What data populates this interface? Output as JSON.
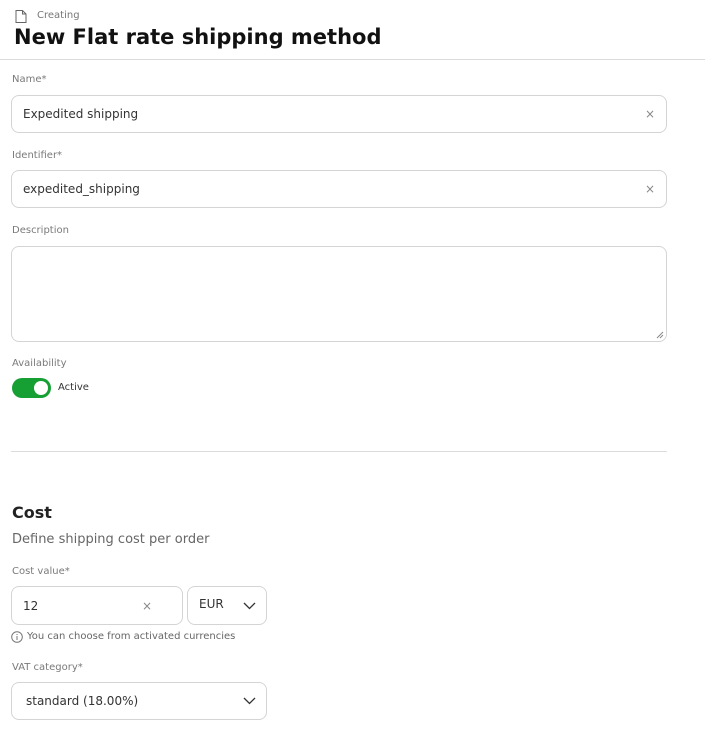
{
  "header": {
    "breadcrumb": "Creating",
    "title": "New Flat rate shipping method"
  },
  "form": {
    "name": {
      "label": "Name*",
      "value": "Expedited shipping"
    },
    "identifier": {
      "label": "Identifier*",
      "value": "expedited_shipping"
    },
    "description": {
      "label": "Description",
      "value": ""
    },
    "availability": {
      "label": "Availability",
      "toggle_label": "Active",
      "enabled": true
    }
  },
  "cost": {
    "title": "Cost",
    "subtitle": "Define shipping cost per order",
    "cost_value": {
      "label": "Cost value*",
      "value": "12"
    },
    "currency": {
      "value": "EUR"
    },
    "hint": "You can choose from activated currencies",
    "vat": {
      "label": "VAT category*",
      "value": "standard (18.00%)"
    }
  },
  "colors": {
    "accent": "#16a034"
  }
}
